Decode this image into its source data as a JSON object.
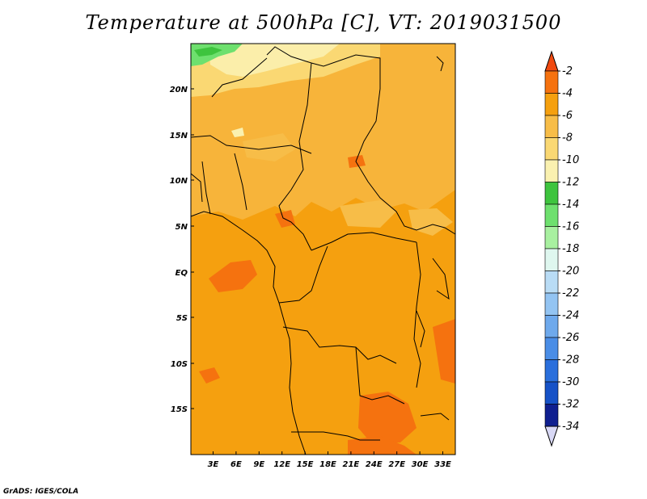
{
  "title": "Temperature at 500hPa [C], VT: 2019031500",
  "credit": "GrADS: IGES/COLA",
  "map": {
    "lat_ticks": [
      "20N",
      "15N",
      "10N",
      "5N",
      "EQ",
      "5S",
      "10S",
      "15S"
    ],
    "lon_ticks": [
      "3E",
      "6E",
      "9E",
      "12E",
      "15E",
      "18E",
      "21E",
      "24E",
      "27E",
      "30E",
      "33E"
    ],
    "base_color": "#f5a00f",
    "land_color": "#f7b43a"
  },
  "colorbar": {
    "labels": [
      "-2",
      "-4",
      "-6",
      "-8",
      "-10",
      "-12",
      "-14",
      "-16",
      "-18",
      "-20",
      "-22",
      "-24",
      "-26",
      "-28",
      "-30",
      "-32",
      "-34"
    ],
    "colors": [
      "#f04a10",
      "#f5720f",
      "#f5a00f",
      "#f7bd48",
      "#fad873",
      "#faf1b0",
      "#3ec43e",
      "#6ee06e",
      "#a8f0a0",
      "#dff7ef",
      "#b9dcf5",
      "#93c4f2",
      "#6ea9ec",
      "#4a8de6",
      "#2a6fdc",
      "#1652c7",
      "#0f1f8f",
      "#d8d8f5"
    ]
  },
  "chart_data": {
    "type": "heatmap",
    "title": "Temperature at 500hPa [C], VT: 2019031500",
    "units": "C",
    "valid_time": "2019031500",
    "level": "500hPa",
    "x_ticks": [
      "3E",
      "6E",
      "9E",
      "12E",
      "15E",
      "18E",
      "21E",
      "24E",
      "27E",
      "30E",
      "33E"
    ],
    "y_ticks": [
      "20N",
      "15N",
      "10N",
      "5N",
      "EQ",
      "5S",
      "10S",
      "15S"
    ],
    "contour_levels": [
      -34,
      -32,
      -30,
      -28,
      -26,
      -24,
      -22,
      -20,
      -18,
      -16,
      -14,
      -12,
      -10,
      -8,
      -6,
      -4,
      -2
    ],
    "dominant_range": [
      -8,
      -4
    ]
  }
}
